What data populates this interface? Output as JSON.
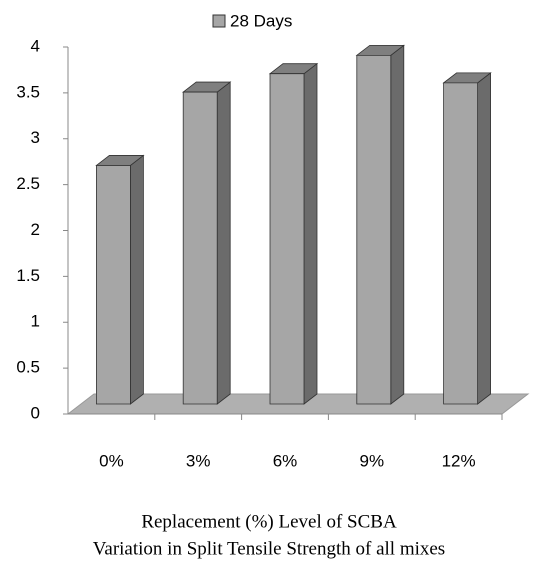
{
  "chart_data": {
    "type": "bar3d",
    "categories": [
      "0%",
      "3%",
      "6%",
      "9%",
      "12%"
    ],
    "series": [
      {
        "name": "28 Days",
        "color": "#a6a6a6",
        "values": [
          2.6,
          3.4,
          3.6,
          3.8,
          3.5
        ]
      }
    ],
    "ylim": [
      0,
      4
    ],
    "yticks": [
      0,
      0.5,
      1,
      1.5,
      2,
      2.5,
      3,
      3.5,
      4
    ],
    "xlabel": "Replacement (%) Level of SCBA",
    "caption": "Variation in Split Tensile Strength of all mixes",
    "legend": "top"
  }
}
